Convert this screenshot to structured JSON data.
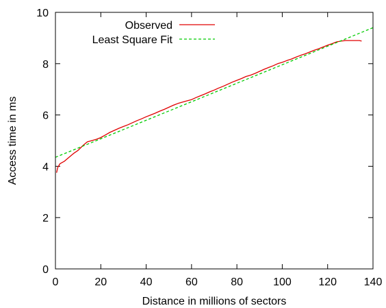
{
  "chart_data": {
    "type": "line",
    "xlabel": "Distance in millions of sectors",
    "ylabel": "Access time in ms",
    "xlim": [
      0,
      140
    ],
    "ylim": [
      0,
      10
    ],
    "xticks": [
      0,
      20,
      40,
      60,
      80,
      100,
      120,
      140
    ],
    "yticks": [
      0,
      2,
      4,
      6,
      8,
      10
    ],
    "grid": false,
    "legend_position": "top-left",
    "series": [
      {
        "name": "Observed",
        "color": "#e00000",
        "style": "solid",
        "x": [
          0.5,
          1,
          2,
          4,
          6,
          8,
          10,
          12,
          14,
          16,
          18,
          20,
          22,
          24,
          26,
          28,
          30,
          32,
          34,
          36,
          38,
          40,
          42,
          44,
          46,
          48,
          50,
          52,
          54,
          56,
          58,
          60,
          62,
          64,
          66,
          68,
          70,
          72,
          74,
          76,
          78,
          80,
          82,
          84,
          86,
          88,
          90,
          92,
          94,
          96,
          98,
          100,
          102,
          104,
          106,
          108,
          110,
          112,
          114,
          116,
          118,
          120,
          122,
          124,
          126,
          128,
          130,
          132,
          134,
          135
        ],
        "y": [
          3.75,
          3.95,
          4.1,
          4.2,
          4.35,
          4.5,
          4.62,
          4.8,
          4.95,
          5.0,
          5.05,
          5.12,
          5.22,
          5.32,
          5.4,
          5.48,
          5.55,
          5.62,
          5.7,
          5.78,
          5.85,
          5.93,
          6.0,
          6.07,
          6.15,
          6.22,
          6.3,
          6.38,
          6.45,
          6.5,
          6.55,
          6.6,
          6.68,
          6.75,
          6.82,
          6.9,
          6.97,
          7.05,
          7.12,
          7.2,
          7.28,
          7.35,
          7.42,
          7.5,
          7.55,
          7.62,
          7.7,
          7.78,
          7.85,
          7.92,
          8.0,
          8.05,
          8.12,
          8.18,
          8.25,
          8.32,
          8.38,
          8.45,
          8.52,
          8.58,
          8.65,
          8.72,
          8.78,
          8.85,
          8.88,
          8.9,
          8.9,
          8.9,
          8.9,
          8.88
        ]
      },
      {
        "name": "Least Square Fit",
        "color": "#00cc00",
        "style": "dashed",
        "x": [
          0,
          140
        ],
        "y": [
          4.35,
          9.4
        ]
      }
    ]
  }
}
